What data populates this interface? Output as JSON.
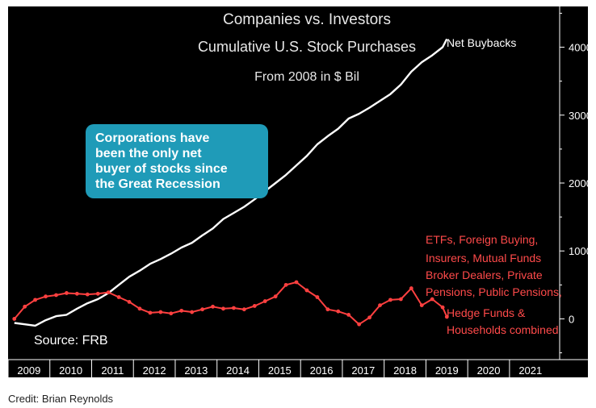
{
  "chart_data": {
    "type": "line",
    "title_lines": [
      "Companies vs. Investors",
      "Cumulative U.S. Stock Purchases",
      "From 2008 in $ Bil"
    ],
    "source": "Source: FRB",
    "annotation_lines": [
      "Corporations have",
      "been the only net",
      "buyer of stocks since",
      "the Great Recession"
    ],
    "x_tick_labels": [
      "2009",
      "2010",
      "2011",
      "2012",
      "2013",
      "2014",
      "2015",
      "2016",
      "2017",
      "2018",
      "2019",
      "2020",
      "2021"
    ],
    "y_ticks": [
      0,
      1000,
      2000,
      3000,
      4000
    ],
    "ylim": [
      -600,
      4600
    ],
    "xlim": [
      2008.5,
      2021.7
    ],
    "grid": false,
    "series": [
      {
        "name": "Net Buybacks",
        "label_lines": [
          "Net Buybacks"
        ],
        "color": "#ffffff",
        "points": [
          [
            2008.65,
            -60
          ],
          [
            2008.9,
            -80
          ],
          [
            2009.15,
            -100
          ],
          [
            2009.4,
            -20
          ],
          [
            2009.65,
            40
          ],
          [
            2009.9,
            60
          ],
          [
            2010.15,
            150
          ],
          [
            2010.4,
            230
          ],
          [
            2010.65,
            290
          ],
          [
            2010.9,
            380
          ],
          [
            2011.15,
            500
          ],
          [
            2011.4,
            620
          ],
          [
            2011.65,
            710
          ],
          [
            2011.9,
            810
          ],
          [
            2012.15,
            880
          ],
          [
            2012.4,
            960
          ],
          [
            2012.65,
            1050
          ],
          [
            2012.9,
            1120
          ],
          [
            2013.15,
            1230
          ],
          [
            2013.4,
            1330
          ],
          [
            2013.65,
            1470
          ],
          [
            2013.9,
            1560
          ],
          [
            2014.15,
            1650
          ],
          [
            2014.4,
            1760
          ],
          [
            2014.65,
            1880
          ],
          [
            2014.9,
            2000
          ],
          [
            2015.15,
            2120
          ],
          [
            2015.4,
            2260
          ],
          [
            2015.65,
            2400
          ],
          [
            2015.9,
            2570
          ],
          [
            2016.15,
            2690
          ],
          [
            2016.4,
            2800
          ],
          [
            2016.65,
            2950
          ],
          [
            2016.9,
            3020
          ],
          [
            2017.15,
            3110
          ],
          [
            2017.4,
            3210
          ],
          [
            2017.65,
            3310
          ],
          [
            2017.9,
            3450
          ],
          [
            2018.15,
            3640
          ],
          [
            2018.4,
            3780
          ],
          [
            2018.65,
            3880
          ],
          [
            2018.9,
            4000
          ],
          [
            2019.0,
            4120
          ]
        ]
      },
      {
        "name": "ETFs, Foreign Buying, Insurers, Mutual Funds Broker Dealers, Private Pensions, Public Pensions, Hedge Funds & Households combined",
        "label_lines": [
          "ETFs, Foreign Buying,",
          "Insurers, Mutual Funds",
          "Broker Dealers, Private",
          "Pensions, Public Pensions,",
          "Hedge Funds &",
          "Households combined"
        ],
        "color": "#ff4040",
        "points": [
          [
            2008.65,
            0
          ],
          [
            2008.9,
            180
          ],
          [
            2009.15,
            280
          ],
          [
            2009.4,
            330
          ],
          [
            2009.65,
            350
          ],
          [
            2009.9,
            380
          ],
          [
            2010.15,
            370
          ],
          [
            2010.4,
            360
          ],
          [
            2010.65,
            370
          ],
          [
            2010.9,
            390
          ],
          [
            2011.15,
            320
          ],
          [
            2011.4,
            250
          ],
          [
            2011.65,
            150
          ],
          [
            2011.9,
            90
          ],
          [
            2012.15,
            100
          ],
          [
            2012.4,
            80
          ],
          [
            2012.65,
            120
          ],
          [
            2012.9,
            100
          ],
          [
            2013.15,
            140
          ],
          [
            2013.4,
            180
          ],
          [
            2013.65,
            150
          ],
          [
            2013.9,
            160
          ],
          [
            2014.15,
            140
          ],
          [
            2014.4,
            190
          ],
          [
            2014.65,
            260
          ],
          [
            2014.9,
            330
          ],
          [
            2015.15,
            500
          ],
          [
            2015.4,
            540
          ],
          [
            2015.65,
            420
          ],
          [
            2015.9,
            320
          ],
          [
            2016.15,
            140
          ],
          [
            2016.4,
            110
          ],
          [
            2016.65,
            60
          ],
          [
            2016.9,
            -80
          ],
          [
            2017.15,
            20
          ],
          [
            2017.4,
            200
          ],
          [
            2017.65,
            280
          ],
          [
            2017.9,
            290
          ],
          [
            2018.15,
            450
          ],
          [
            2018.4,
            200
          ],
          [
            2018.65,
            290
          ],
          [
            2018.9,
            170
          ],
          [
            2019.0,
            30
          ]
        ]
      }
    ]
  },
  "credit": "Credit: Brian Reynolds"
}
